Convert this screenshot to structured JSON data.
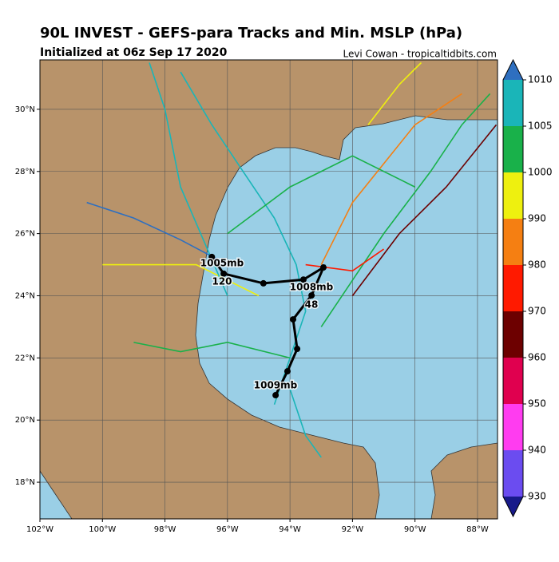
{
  "title": "90L INVEST - GEFS-para Tracks and Min. MSLP (hPa)",
  "subtitle": "Initialized at 06z Sep 17 2020",
  "credit": "Levi Cowan - tropicaltidbits.com",
  "map": {
    "xlim": [
      -102.0,
      -87.36
    ],
    "ylim": [
      16.82,
      31.59
    ],
    "xticks": [
      {
        "value": -102,
        "label": "102°W"
      },
      {
        "value": -100,
        "label": "100°W"
      },
      {
        "value": -98,
        "label": "98°W"
      },
      {
        "value": -96,
        "label": "96°W"
      },
      {
        "value": -94,
        "label": "94°W"
      },
      {
        "value": -92,
        "label": "92°W"
      },
      {
        "value": -90,
        "label": "90°W"
      },
      {
        "value": -88,
        "label": "88°W"
      }
    ],
    "yticks": [
      {
        "value": 18,
        "label": "18°N"
      },
      {
        "value": 20,
        "label": "20°N"
      },
      {
        "value": 22,
        "label": "22°N"
      },
      {
        "value": 24,
        "label": "24°N"
      },
      {
        "value": 26,
        "label": "26°N"
      },
      {
        "value": 28,
        "label": "28°N"
      },
      {
        "value": 30,
        "label": "30°N"
      }
    ],
    "grid": true
  },
  "member_tracks": [
    {
      "color": "#1ab5b8",
      "lon": [
        -94.5,
        -94.0,
        -93.5,
        -93.8,
        -94.5,
        -95.5,
        -96.5,
        -97.5
      ],
      "lat": [
        20.5,
        22,
        23.5,
        25,
        26.5,
        28,
        29.5,
        31.2
      ]
    },
    {
      "color": "#19b14a",
      "lon": [
        -93,
        -92,
        -91,
        -89.5,
        -88.5,
        -87.6
      ],
      "lat": [
        23,
        24.5,
        26,
        28,
        29.5,
        30.5
      ]
    },
    {
      "color": "#f57f12",
      "lon": [
        -93,
        -92,
        -90,
        -88.5
      ],
      "lat": [
        25,
        27,
        29.5,
        30.5
      ]
    },
    {
      "color": "#6d0000",
      "lon": [
        -92,
        -90.5,
        -89,
        -87.4
      ],
      "lat": [
        24,
        26,
        27.5,
        29.5
      ]
    },
    {
      "color": "#2e6fc0",
      "lon": [
        -96,
        -97.5,
        -99,
        -100.5
      ],
      "lat": [
        25,
        25.8,
        26.5,
        27
      ]
    },
    {
      "color": "#eef00f",
      "lon": [
        -95,
        -97,
        -99,
        -100
      ],
      "lat": [
        24,
        25,
        25,
        25
      ]
    },
    {
      "color": "#1ab5b8",
      "lon": [
        -96,
        -97.5,
        -98,
        -98.5
      ],
      "lat": [
        24,
        27.5,
        30,
        31.5
      ]
    },
    {
      "color": "#19b14a",
      "lon": [
        -94,
        -96,
        -97.5,
        -99
      ],
      "lat": [
        22,
        22.5,
        22.2,
        22.5
      ]
    },
    {
      "color": "#ff1a00",
      "lon": [
        -93.5,
        -92,
        -91
      ],
      "lat": [
        25,
        24.8,
        25.5
      ]
    },
    {
      "color": "#1ab5b8",
      "lon": [
        -94,
        -93.5,
        -93
      ],
      "lat": [
        21,
        19.5,
        18.8
      ]
    },
    {
      "color": "#eef00f",
      "lon": [
        -91.5,
        -90.5,
        -89.8
      ],
      "lat": [
        29.5,
        30.8,
        31.5
      ]
    },
    {
      "color": "#19b14a",
      "lon": [
        -96,
        -94,
        -92,
        -90
      ],
      "lat": [
        26,
        27.5,
        28.5,
        27.5
      ]
    }
  ],
  "mean_track": {
    "lon": [
      -94.46,
      -94.08,
      -93.77,
      -93.9,
      -93.31,
      -92.93,
      -93.57,
      -94.85,
      -96.12,
      -96.5
    ],
    "lat": [
      20.8,
      21.57,
      22.29,
      23.24,
      24.01,
      24.91,
      24.52,
      24.4,
      24.71,
      25.25
    ]
  },
  "mean_track_labels": [
    "1005mb",
    "120",
    "1008mb",
    "48",
    "1009mb"
  ],
  "colorbar": {
    "levels": [
      930,
      940,
      950,
      960,
      970,
      980,
      990,
      1000,
      1005,
      1010
    ],
    "colors": [
      "#6b4cf0",
      "#ff3cf0",
      "#e0004f",
      "#6d0000",
      "#ff1a00",
      "#f57f12",
      "#eef00f",
      "#19b14a",
      "#1ab5b8"
    ],
    "under_color": "#181a8a",
    "over_color": "#2e6fc0"
  }
}
